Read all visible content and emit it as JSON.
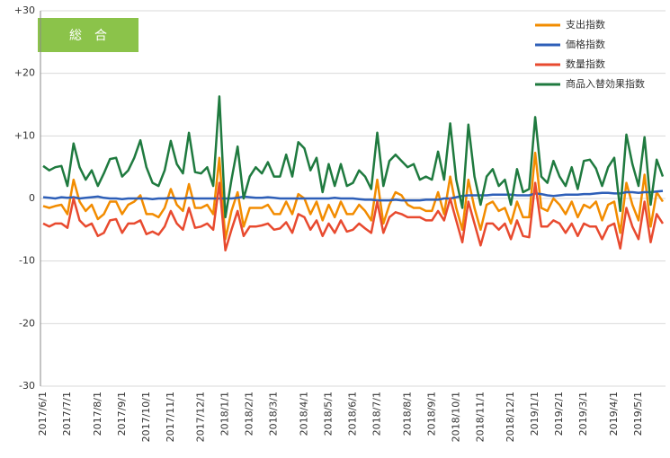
{
  "chart_data": {
    "type": "line",
    "title": "総　合",
    "title_color": "#8bc34a",
    "categories": [
      "2017/6/1",
      null,
      null,
      null,
      "2017/7/1",
      null,
      null,
      null,
      null,
      "2017/8/1",
      null,
      null,
      null,
      "2017/9/1",
      null,
      null,
      null,
      "2017/10/1",
      null,
      null,
      null,
      "2017/11/1",
      null,
      null,
      null,
      null,
      "2017/12/1",
      null,
      null,
      null,
      "2018/1/1",
      null,
      null,
      null,
      "2018/2/1",
      null,
      null,
      null,
      "2018/3/1",
      null,
      null,
      null,
      null,
      "2018/4/1",
      null,
      null,
      null,
      "2018/5/1",
      null,
      null,
      null,
      "2018/6/1",
      null,
      null,
      null,
      "2018/7/1",
      null,
      null,
      null,
      null,
      "2018/8/1",
      null,
      null,
      null,
      "2018/9/1",
      null,
      null,
      null,
      "2018/10/1",
      null,
      null,
      null,
      "2018/11/1",
      null,
      null,
      null,
      null,
      "2018/12/1",
      null,
      null,
      null,
      "2019/1/1",
      null,
      null,
      null,
      "2019/2/1",
      null,
      null,
      null,
      "2019/3/1",
      null,
      null,
      null,
      null,
      "2019/4/1",
      null,
      null,
      null,
      "2019/5/1",
      null,
      null,
      null,
      null
    ],
    "ylim": [
      -30,
      30
    ],
    "yticks": [
      {
        "value": 30,
        "label": "+30"
      },
      {
        "value": 20,
        "label": "+20"
      },
      {
        "value": 10,
        "label": "+10"
      },
      0,
      -10,
      -20,
      -30
    ],
    "grid": true,
    "legend": "top-right",
    "series": [
      {
        "name": "支出指数",
        "color": "#f28c00",
        "values": [
          -1.2,
          -1.5,
          -1.2,
          -1,
          -2.5,
          3,
          -0.5,
          -2,
          -1,
          -3.3,
          -2.5,
          -0.5,
          -0.5,
          -2.5,
          -1,
          -0.5,
          0.5,
          -2.5,
          -2.5,
          -3,
          -1.5,
          1.5,
          -1,
          -2,
          2.3,
          -1.5,
          -1.5,
          -1,
          -2.5,
          6.5,
          -6.5,
          -2,
          1,
          -4.5,
          -1.5,
          -1.5,
          -1.5,
          -1,
          -2.5,
          -2.5,
          -0.5,
          -2.5,
          0.7,
          0,
          -2.5,
          -0.5,
          -3.5,
          -1,
          -3,
          -0.5,
          -2.5,
          -2.5,
          -1,
          -2,
          -3.5,
          3,
          -4,
          -1,
          1,
          0.5,
          -1,
          -1.5,
          -1.5,
          -2,
          -2,
          1,
          -2.5,
          3.5,
          -1.5,
          -5,
          3,
          -1.5,
          -5,
          -1,
          -0.5,
          -2,
          -1.5,
          -4,
          -0.5,
          -3,
          -3,
          7.3,
          -1.5,
          -2,
          0,
          -1,
          -2.5,
          -0.5,
          -3,
          -1,
          -1.5,
          -0.5,
          -3.5,
          -1,
          -0.5,
          -5.5,
          2.5,
          -1,
          -3.5,
          3.8,
          -4.5,
          1,
          -0.5
        ]
      },
      {
        "name": "価格指数",
        "color": "#2e5fb8",
        "values": [
          0.2,
          0.1,
          0,
          0.2,
          0.1,
          0.2,
          0,
          0.1,
          0.2,
          0.3,
          0.1,
          0,
          0,
          -0.1,
          0,
          0,
          0,
          0,
          -0.1,
          0,
          0,
          0.1,
          0,
          0,
          0.1,
          0,
          0,
          0,
          0,
          0,
          0,
          0,
          0.1,
          0.3,
          0.2,
          0.1,
          0.1,
          0.2,
          0.1,
          0,
          0,
          0,
          0,
          0,
          0,
          0,
          0,
          0,
          0.1,
          0,
          0,
          0,
          -0.1,
          -0.2,
          -0.2,
          -0.3,
          -0.3,
          -0.3,
          -0.2,
          -0.3,
          -0.3,
          -0.3,
          -0.3,
          -0.2,
          -0.2,
          -0.2,
          0,
          0,
          0.2,
          0.4,
          0.5,
          0.5,
          0.5,
          0.5,
          0.6,
          0.6,
          0.6,
          0.6,
          0.5,
          0.5,
          0.5,
          0.8,
          0.7,
          0.5,
          0.4,
          0.5,
          0.6,
          0.6,
          0.6,
          0.7,
          0.7,
          0.8,
          0.9,
          0.9,
          0.8,
          0.8,
          1,
          1,
          0.9,
          1,
          1,
          1.1,
          1.2
        ]
      },
      {
        "name": "数量指数",
        "color": "#e84a2f",
        "values": [
          -4,
          -4.5,
          -4,
          -4,
          -4.7,
          0,
          -3.5,
          -4.5,
          -4,
          -6,
          -5.5,
          -3.5,
          -3.3,
          -5.5,
          -4,
          -4,
          -3.5,
          -5.7,
          -5.3,
          -5.8,
          -4.5,
          -2,
          -4,
          -5,
          -1.5,
          -4.7,
          -4.5,
          -4,
          -5,
          2.5,
          -8.3,
          -5,
          -2,
          -6,
          -4.5,
          -4.5,
          -4.3,
          -4,
          -5,
          -4.8,
          -3.8,
          -5.5,
          -2.5,
          -3,
          -5,
          -3.5,
          -6,
          -4,
          -5.5,
          -3.5,
          -5.3,
          -5,
          -4,
          -4.8,
          -5.5,
          -0.5,
          -5.5,
          -3,
          -2.2,
          -2.5,
          -3,
          -3,
          -3,
          -3.5,
          -3.5,
          -2,
          -3.5,
          0,
          -3.5,
          -7,
          -0.5,
          -4,
          -7.5,
          -4,
          -4,
          -5,
          -4,
          -6.5,
          -3.5,
          -6,
          -6.2,
          2.5,
          -4.5,
          -4.5,
          -3.5,
          -4,
          -5.5,
          -4,
          -6,
          -4,
          -4.5,
          -4.5,
          -6.5,
          -4.5,
          -4,
          -8,
          -1.5,
          -4.5,
          -6.5,
          -0.5,
          -7,
          -2.5,
          -4
        ]
      },
      {
        "name": "商品入替効果指数",
        "color": "#1f7a3f",
        "values": [
          5.2,
          4.5,
          5,
          5.2,
          2,
          8.8,
          5,
          3,
          4.5,
          2,
          4,
          6.3,
          6.5,
          3.5,
          4.5,
          6.5,
          9.3,
          5,
          2.5,
          2,
          4.5,
          9.2,
          5.5,
          4,
          10.5,
          4.2,
          4,
          5,
          2,
          16.3,
          -3,
          3,
          8.3,
          0,
          3.5,
          5,
          4,
          5.8,
          3.5,
          3.5,
          7,
          3.5,
          9,
          8,
          4.5,
          6.5,
          1,
          5.5,
          2,
          5.5,
          2,
          2.5,
          4.5,
          3.5,
          1.5,
          10.5,
          2,
          6,
          7,
          6,
          5,
          5.5,
          3,
          3.5,
          3,
          7.5,
          3,
          12,
          3,
          -1.5,
          11.8,
          3.5,
          -1,
          3.5,
          4.7,
          2,
          3,
          -1,
          4.7,
          1,
          1.5,
          13,
          3.5,
          2.5,
          6,
          3.5,
          2,
          5,
          1.5,
          6,
          6.2,
          4.8,
          2,
          5,
          6.5,
          -2,
          10.2,
          5.5,
          2,
          9.8,
          -1,
          6.2,
          3.5
        ]
      }
    ]
  }
}
